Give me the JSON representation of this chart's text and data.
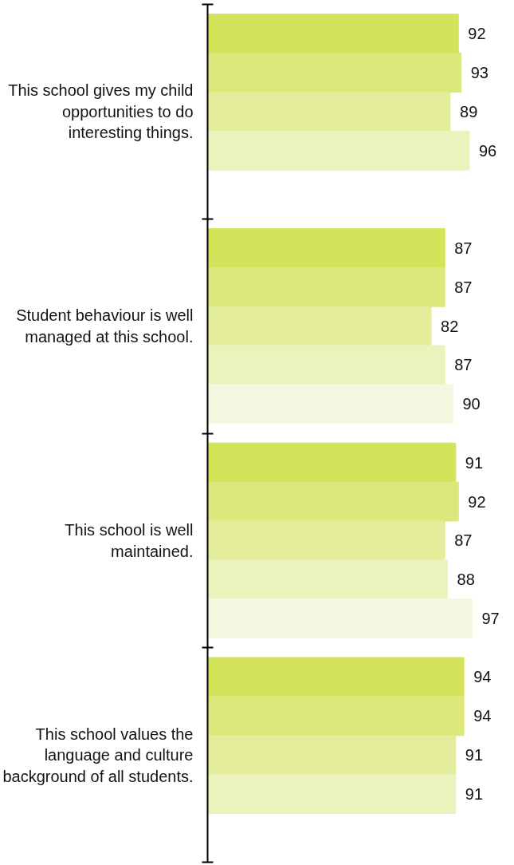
{
  "chart_data": {
    "type": "bar",
    "orientation": "horizontal",
    "categories": [
      "This school gives my child opportunities to do interesting things.",
      "Student behaviour is well managed at this school.",
      "This school is well maintained.",
      "This school values the language and culture background of all students."
    ],
    "series": [
      {
        "color": "#d4e45a",
        "values": [
          92,
          87,
          91,
          94
        ]
      },
      {
        "color": "#dce87c",
        "values": [
          93,
          87,
          92,
          94
        ]
      },
      {
        "color": "#e3ed9c",
        "values": [
          89,
          82,
          87,
          91
        ]
      },
      {
        "color": "#ebf3bc",
        "values": [
          96,
          87,
          88,
          91
        ]
      },
      {
        "color": "#f4f8e0",
        "values": [
          null,
          90,
          97,
          null
        ]
      }
    ],
    "data_labels": true,
    "grid": false
  }
}
